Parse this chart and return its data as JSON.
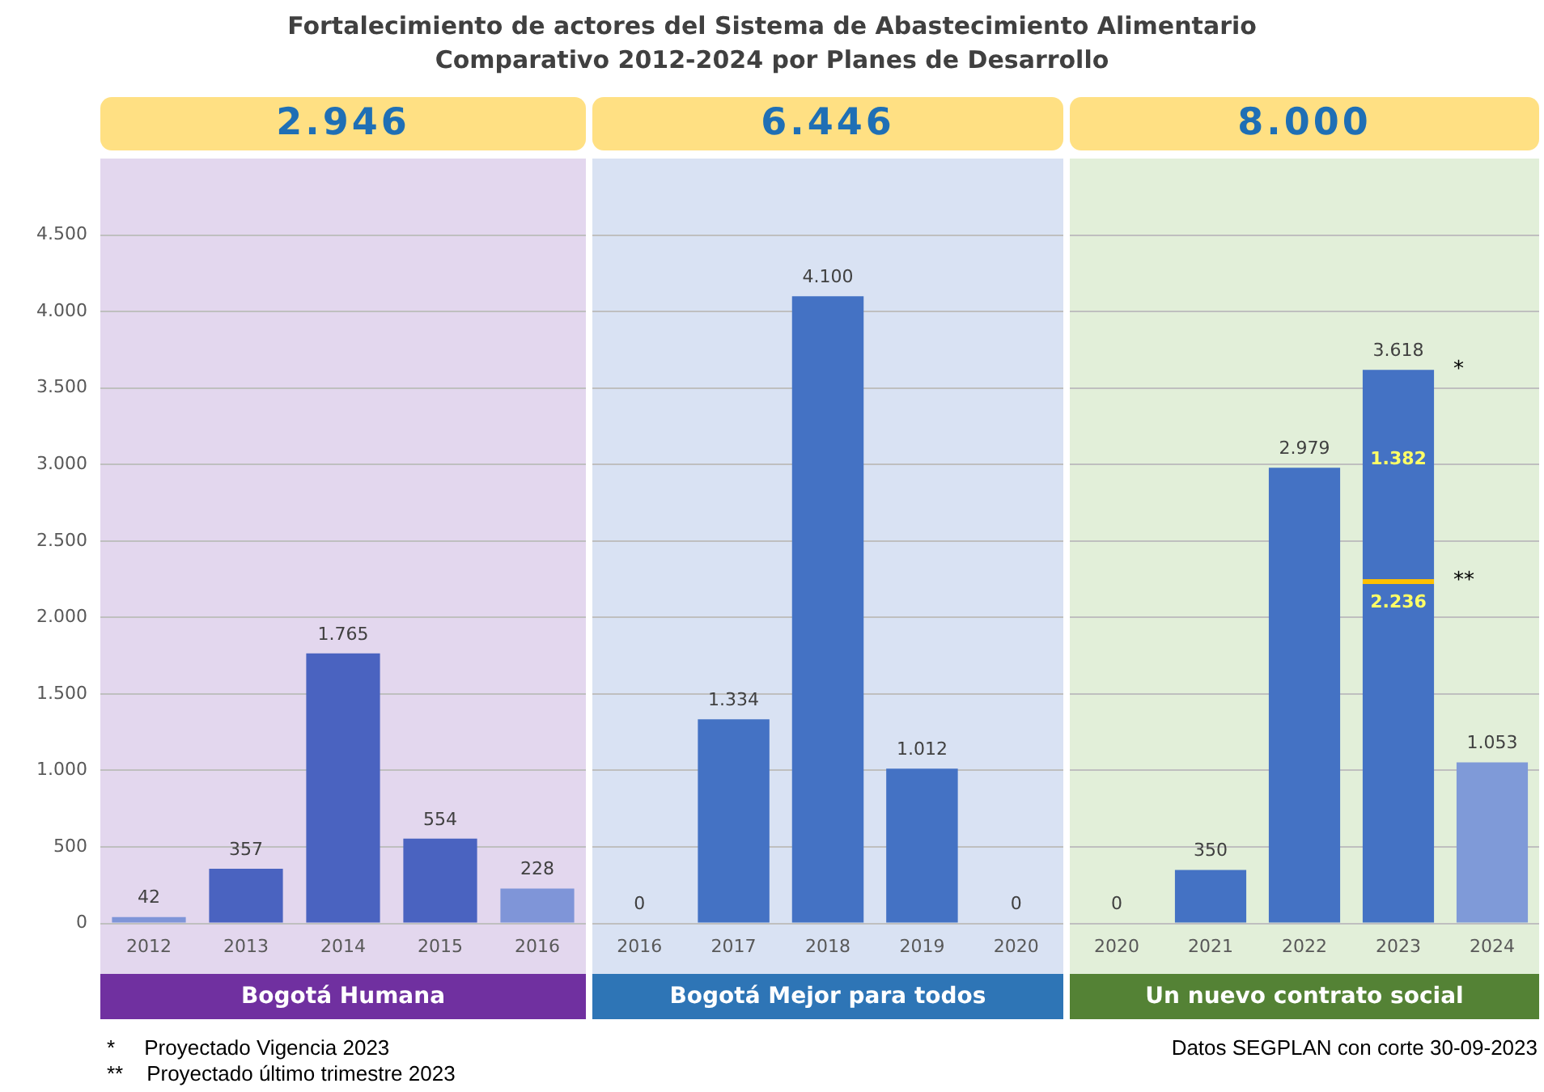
{
  "chart_data": [
    {
      "type": "bar",
      "title": "Fortalecimiento de actores del Sistema de Abastecimiento Alimentario\nComparativo 2012-2024 por Planes de Desarrollo",
      "subtitle": "2.946",
      "xlabel": "Bogotá Humana",
      "categories": [
        "2012",
        "2013",
        "2014",
        "2015",
        "2016"
      ],
      "series": [
        {
          "color": "#4a63c0",
          "colors": [
            "#7f95d8",
            null,
            null,
            null,
            "#7f95d8"
          ],
          "values": [
            42,
            357,
            1765,
            554,
            228
          ],
          "value_labels": [
            "42",
            "357",
            "1.765",
            "554",
            "228"
          ]
        }
      ],
      "ylim": [
        0,
        5000
      ],
      "yticks": [
        {
          "value": 0,
          "label": "0"
        },
        {
          "value": 500,
          "label": "500"
        },
        {
          "value": 1000,
          "label": "1.000"
        },
        {
          "value": 1500,
          "label": "1.500"
        },
        {
          "value": 2000,
          "label": "2.000"
        },
        {
          "value": 2500,
          "label": "2.500"
        },
        {
          "value": 3000,
          "label": "3.000"
        },
        {
          "value": 3500,
          "label": "3.500"
        },
        {
          "value": 4000,
          "label": "4.000"
        },
        {
          "value": 4500,
          "label": "4.500"
        }
      ],
      "grid": "y",
      "annotations": [
        "*     Proyectado Vigencia 2023",
        "**    Proyectado último trimestre 2023"
      ]
    },
    {
      "type": "bar",
      "subtitle": "6.446",
      "xlabel": "Bogotá Mejor para todos",
      "categories": [
        "2016",
        "2017",
        "2018",
        "2019",
        "2020"
      ],
      "series": [
        {
          "color": "#4472c4",
          "values": [
            0,
            1334,
            4100,
            1012,
            0
          ],
          "value_labels": [
            "0",
            "1.334",
            "4.100",
            "1.012",
            "0"
          ]
        }
      ],
      "ylim": [
        0,
        5000
      ],
      "yticks": [
        0,
        500,
        1000,
        1500,
        2000,
        2500,
        3000,
        3500,
        4000,
        4500
      ],
      "grid": "y",
      "tick_labels": "x"
    },
    {
      "type": "bar",
      "subtitle": "8.000",
      "xlabel": "Un nuevo contrato social",
      "stacked": true,
      "categories": [
        "2020",
        "2021",
        "2022",
        "2023",
        "2024"
      ],
      "series": [
        {
          "color": "#4472c4",
          "colors": [
            null,
            null,
            null,
            null,
            "#7f9ad8"
          ],
          "values": [
            0,
            350,
            2979,
            2236,
            1053
          ],
          "value_labels": [
            "0",
            "350",
            "2.979",
            "2.236",
            "1.053"
          ]
        },
        {
          "color": "#4472c4",
          "values": [
            null,
            null,
            null,
            1382,
            null
          ],
          "value_labels": [
            null,
            null,
            null,
            "1.382",
            null
          ]
        }
      ],
      "totals": [
        null,
        null,
        null,
        "3.618",
        null
      ],
      "ylim": [
        0,
        5000
      ],
      "yticks": [
        0,
        500,
        1000,
        1500,
        2000,
        2500,
        3000,
        3500,
        4000,
        4500
      ],
      "grid": "y",
      "tick_labels": "x",
      "annotations": [
        {
          "text": "*",
          "x": "2023",
          "y": 3618
        },
        {
          "text": "**",
          "x": "2023",
          "y": 2236
        },
        "Datos SEGPLAN con corte 30-09-2023"
      ]
    }
  ]
}
